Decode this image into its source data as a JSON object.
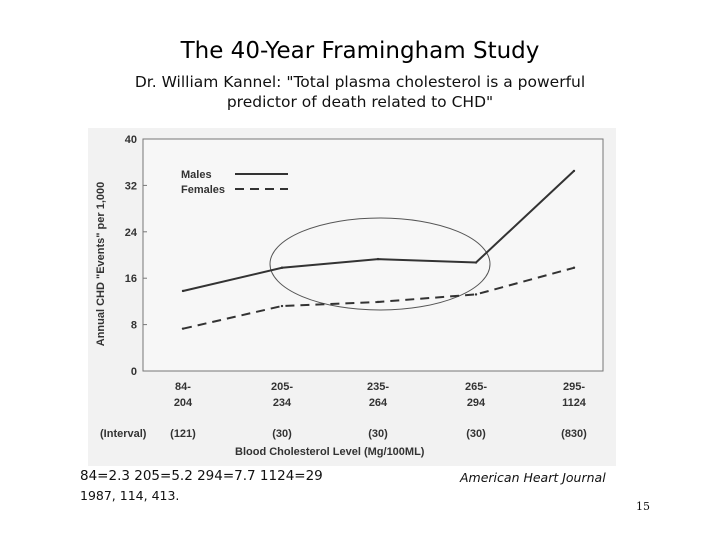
{
  "slide": {
    "title": "The 40-Year Framingham Study",
    "subtitle_line1": "Dr. William Kannel: \"Total plasma cholesterol is a powerful",
    "subtitle_line2": "predictor of death related to CHD\"",
    "stats_caption": "84=2.3   205=5.2 294=7.7 1124=29",
    "reference_caption": "1987, 114, 413.",
    "journal_caption": "American Heart Journal",
    "page_number": "15"
  },
  "chart_data": {
    "type": "line",
    "title": "",
    "xlabel": "Blood Cholesterol Level (Mg/100ML)",
    "ylabel": "Annual CHD \"Events\" per 1,000",
    "ylim": [
      0,
      40
    ],
    "yticks": [
      "0",
      "8",
      "16",
      "24",
      "32",
      "40"
    ],
    "categories": [
      {
        "line1": "84-",
        "line2": "204"
      },
      {
        "line1": "205-",
        "line2": "234"
      },
      {
        "line1": "235-",
        "line2": "264"
      },
      {
        "line1": "265-",
        "line2": "294"
      },
      {
        "line1": "295-",
        "line2": "1124"
      }
    ],
    "interval_label": "(Interval)",
    "interval_counts": [
      "(121)",
      "(30)",
      "(30)",
      "(30)",
      "(830)"
    ],
    "series": [
      {
        "name": "Males",
        "style": "solid",
        "values": [
          13.8,
          17.8,
          19.3,
          18.7,
          34.5
        ]
      },
      {
        "name": "Females",
        "style": "dashed",
        "values": [
          7.3,
          11.2,
          11.9,
          13.2,
          17.8
        ]
      }
    ],
    "legend_position": "top-left",
    "highlight_ellipse_around": [
      "205-234",
      "235-264",
      "265-294"
    ],
    "grid": false,
    "line_color": "#333333",
    "background": "#f2f2f2"
  }
}
